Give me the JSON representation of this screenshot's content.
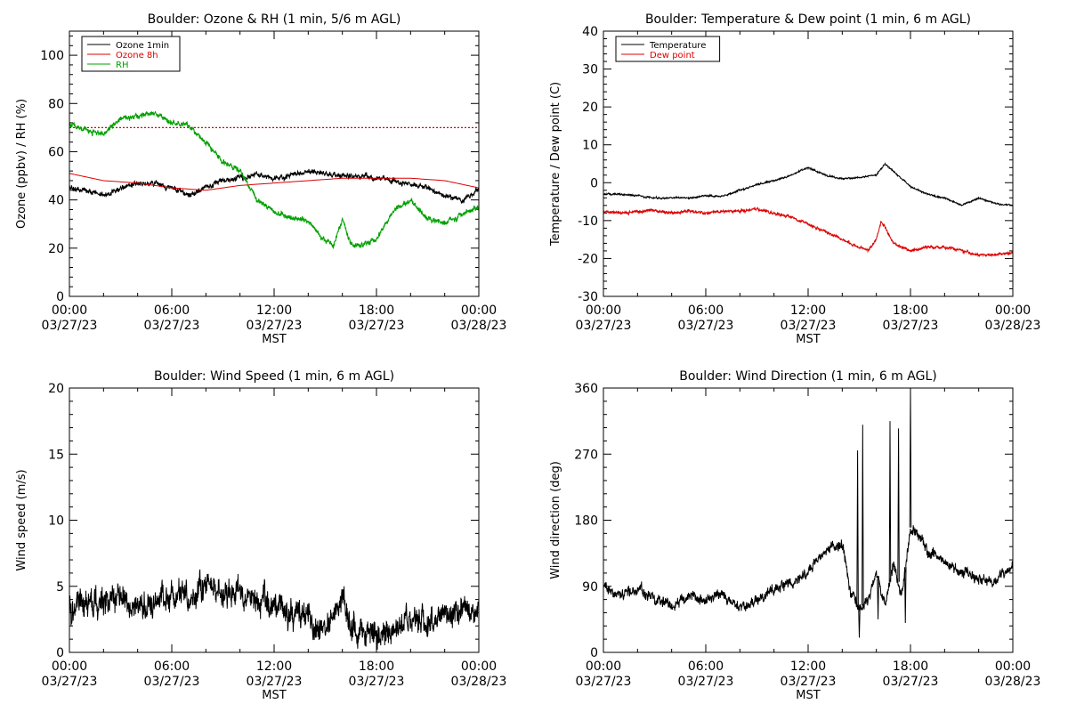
{
  "chart_data": [
    {
      "type": "line",
      "title": "Boulder: Ozone & RH (1 min, 5/6 m AGL)",
      "xlabel": "MST",
      "ylabel": "Ozone (ppbv) / RH (%)",
      "xlim": [
        "03/27/23 00:00",
        "03/28/23 00:00"
      ],
      "xticks": [
        {
          "time": "00:00",
          "date": "03/27/23"
        },
        {
          "time": "06:00",
          "date": "03/27/23"
        },
        {
          "time": "12:00",
          "date": "03/27/23"
        },
        {
          "time": "18:00",
          "date": "03/27/23"
        },
        {
          "time": "00:00",
          "date": "03/28/23"
        }
      ],
      "ylim": [
        0,
        110
      ],
      "yticks": [
        0,
        20,
        40,
        60,
        80,
        100
      ],
      "grid": false,
      "legend_position": "top-left",
      "hlines": [
        {
          "y": 70,
          "color": "#dd0000",
          "style": "dotted"
        }
      ],
      "series": [
        {
          "name": "Ozone 1min",
          "color": "#000000",
          "noise": 1.5,
          "x_hours": [
            0,
            1,
            2,
            3,
            4,
            5,
            6,
            7,
            8,
            9,
            10,
            11,
            12,
            13,
            14,
            15,
            16,
            17,
            18,
            19,
            20,
            21,
            22,
            23,
            24
          ],
          "y": [
            45,
            44,
            42,
            45,
            47,
            47,
            45,
            42,
            45,
            48,
            49,
            50,
            49,
            50,
            52,
            51,
            50,
            50,
            49,
            48,
            46,
            45,
            42,
            40,
            44
          ]
        },
        {
          "name": "Ozone 8h",
          "color": "#dd0000",
          "noise": 0,
          "x_hours": [
            0,
            2,
            4,
            6,
            8,
            10,
            12,
            14,
            16,
            18,
            20,
            22,
            24
          ],
          "y": [
            51,
            48,
            47,
            45,
            44,
            46,
            47,
            48,
            49,
            49,
            49,
            48,
            45
          ]
        },
        {
          "name": "RH",
          "color": "#00a000",
          "noise": 1.5,
          "x_hours": [
            0,
            1,
            2,
            3,
            4,
            5,
            6,
            7,
            8,
            9,
            10,
            11,
            12,
            13,
            14,
            15,
            15.5,
            16,
            16.5,
            17,
            18,
            19,
            20,
            21,
            22,
            23,
            24
          ],
          "y": [
            71,
            69,
            67,
            74,
            75,
            76,
            72,
            71,
            64,
            56,
            52,
            40,
            35,
            33,
            31,
            23,
            21,
            32,
            22,
            21,
            24,
            35,
            40,
            32,
            30,
            34,
            37
          ]
        }
      ]
    },
    {
      "type": "line",
      "title": "Boulder: Temperature & Dew point (1 min, 6 m AGL)",
      "xlabel": "MST",
      "ylabel": "Temperature / Dew point (C)",
      "xlim": [
        "03/27/23 00:00",
        "03/28/23 00:00"
      ],
      "xticks": [
        {
          "time": "00:00",
          "date": "03/27/23"
        },
        {
          "time": "06:00",
          "date": "03/27/23"
        },
        {
          "time": "12:00",
          "date": "03/27/23"
        },
        {
          "time": "18:00",
          "date": "03/27/23"
        },
        {
          "time": "00:00",
          "date": "03/28/23"
        }
      ],
      "ylim": [
        -30,
        40
      ],
      "yticks": [
        -30,
        -20,
        -10,
        0,
        10,
        20,
        30,
        40
      ],
      "grid": false,
      "legend_position": "top-left",
      "series": [
        {
          "name": "Temperature",
          "color": "#000000",
          "noise": 0.3,
          "x_hours": [
            0,
            1,
            2,
            3,
            4,
            5,
            6,
            7,
            8,
            9,
            10,
            11,
            12,
            13,
            14,
            15,
            16,
            16.5,
            17,
            18,
            19,
            20,
            21,
            22,
            23,
            24
          ],
          "y": [
            -3,
            -3,
            -3.5,
            -4,
            -4,
            -4,
            -3.5,
            -3.5,
            -2,
            -0.5,
            0.5,
            2,
            4,
            2,
            1,
            1.5,
            2,
            5,
            3,
            -1,
            -3,
            -4,
            -6,
            -4,
            -5.5,
            -6
          ]
        },
        {
          "name": "Dew point",
          "color": "#dd0000",
          "noise": 0.5,
          "x_hours": [
            0,
            1,
            2,
            3,
            4,
            5,
            6,
            7,
            8,
            9,
            10,
            11,
            12,
            13,
            14,
            15,
            15.5,
            16,
            16.3,
            17,
            18,
            19,
            20,
            21,
            22,
            23,
            24
          ],
          "y": [
            -7.5,
            -8,
            -7.5,
            -7.5,
            -8,
            -7.5,
            -8,
            -7.5,
            -7.5,
            -7,
            -8,
            -9,
            -11,
            -13,
            -15,
            -17,
            -18,
            -15,
            -10,
            -16,
            -18,
            -17,
            -17,
            -18,
            -19,
            -19,
            -18.5
          ]
        }
      ]
    },
    {
      "type": "line",
      "title": "Boulder: Wind Speed (1 min, 6 m AGL)",
      "xlabel": "MST",
      "ylabel": "Wind speed (m/s)",
      "xlim": [
        "03/27/23 00:00",
        "03/28/23 00:00"
      ],
      "xticks": [
        {
          "time": "00:00",
          "date": "03/27/23"
        },
        {
          "time": "06:00",
          "date": "03/27/23"
        },
        {
          "time": "12:00",
          "date": "03/27/23"
        },
        {
          "time": "18:00",
          "date": "03/27/23"
        },
        {
          "time": "00:00",
          "date": "03/28/23"
        }
      ],
      "ylim": [
        0,
        20
      ],
      "yticks": [
        0,
        5,
        10,
        15,
        20
      ],
      "grid": false,
      "series": [
        {
          "name": "",
          "color": "#000000",
          "noise": 1.4,
          "x_hours": [
            0,
            1,
            2,
            3,
            4,
            5,
            6,
            7,
            8,
            9,
            10,
            11,
            12,
            13,
            14,
            15,
            15.5,
            16,
            16.5,
            17,
            18,
            19,
            20,
            21,
            22,
            23,
            24
          ],
          "y": [
            3.5,
            3.5,
            3.8,
            4.2,
            3.5,
            4,
            4,
            4.5,
            4.8,
            4.5,
            4.5,
            4,
            3.5,
            3,
            2.5,
            1.5,
            2.5,
            4.5,
            2,
            2,
            1.2,
            1.5,
            2.2,
            2.5,
            3,
            3,
            3.2
          ]
        }
      ]
    },
    {
      "type": "line",
      "title": "Boulder: Wind Direction (1 min, 6 m AGL)",
      "xlabel": "MST",
      "ylabel": "Wind direction (deg)",
      "xlim": [
        "03/27/23 00:00",
        "03/28/23 00:00"
      ],
      "xticks": [
        {
          "time": "00:00",
          "date": "03/27/23"
        },
        {
          "time": "06:00",
          "date": "03/27/23"
        },
        {
          "time": "12:00",
          "date": "03/27/23"
        },
        {
          "time": "18:00",
          "date": "03/27/23"
        },
        {
          "time": "00:00",
          "date": "03/28/23"
        }
      ],
      "ylim": [
        0,
        360
      ],
      "yticks": [
        0,
        90,
        180,
        270,
        360
      ],
      "grid": false,
      "series": [
        {
          "name": "",
          "color": "#000000",
          "noise": 10,
          "x_hours": [
            0,
            1,
            2,
            3,
            4,
            5,
            6,
            7,
            8,
            9,
            10,
            11,
            12,
            13,
            14,
            14.5,
            15,
            15.5,
            16,
            16.5,
            17,
            17.5,
            18,
            18.5,
            19,
            20,
            21,
            22,
            23,
            24
          ],
          "y": [
            85,
            80,
            85,
            75,
            65,
            75,
            70,
            80,
            60,
            70,
            85,
            95,
            110,
            140,
            150,
            80,
            60,
            70,
            110,
            60,
            120,
            80,
            170,
            160,
            140,
            120,
            110,
            100,
            95,
            120
          ]
        }
      ],
      "spikes": [
        {
          "x_hour": 14.9,
          "y": 275
        },
        {
          "x_hour": 15.2,
          "y": 310
        },
        {
          "x_hour": 16.8,
          "y": 315
        },
        {
          "x_hour": 17.3,
          "y": 305
        },
        {
          "x_hour": 18.0,
          "y": 360
        },
        {
          "x_hour": 15.0,
          "y": 20
        },
        {
          "x_hour": 16.1,
          "y": 45
        },
        {
          "x_hour": 17.7,
          "y": 40
        }
      ]
    }
  ]
}
